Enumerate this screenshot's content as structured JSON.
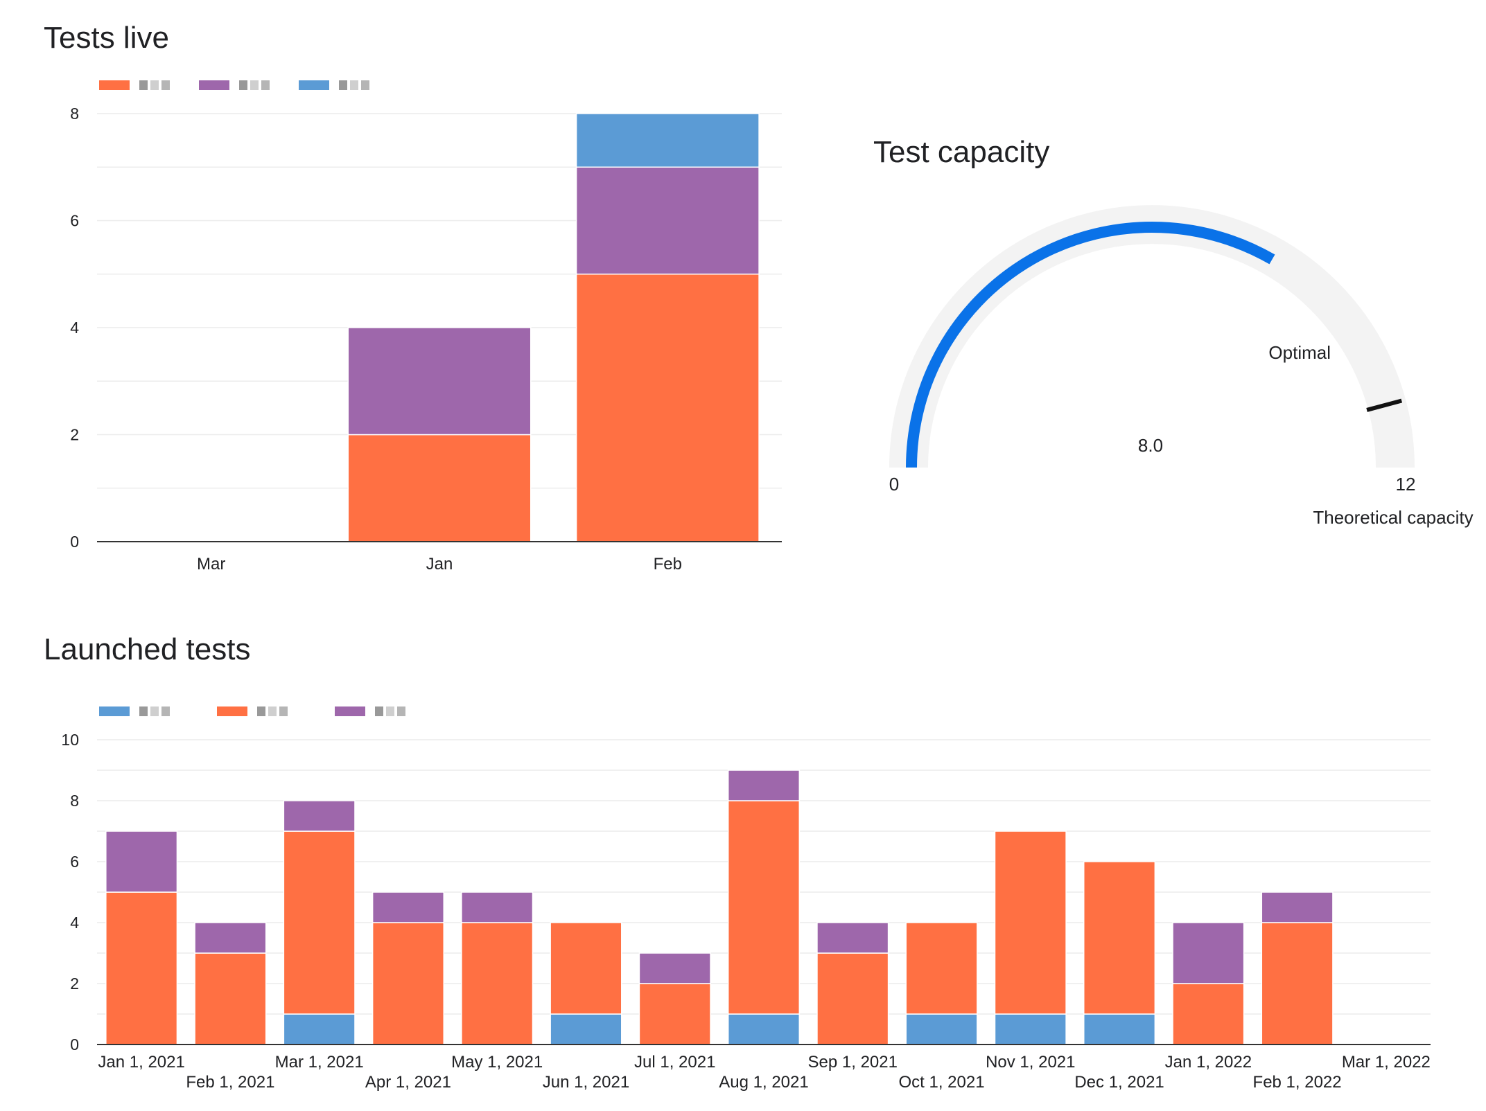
{
  "tests_live": {
    "title": "Tests live"
  },
  "launched_tests": {
    "title": "Launched tests"
  },
  "test_capacity": {
    "title": "Test capacity",
    "value_label": "8.0",
    "min_label": "0",
    "max_label": "12",
    "target_label": "Optimal",
    "max_caption": "Theoretical capacity"
  },
  "colors": {
    "orange": "#ff7043",
    "purple": "#9e67ab",
    "blue": "#5b9bd5",
    "gauge_fill": "#0a72e8",
    "gauge_track": "#f3f3f3",
    "optimal": "#7cb342"
  },
  "chart_data": [
    {
      "type": "bar",
      "stacked": true,
      "title": "Tests live",
      "categories": [
        "Mar",
        "Jan",
        "Feb"
      ],
      "series": [
        {
          "color": "#ff7043",
          "values": [
            0,
            2,
            5
          ]
        },
        {
          "color": "#9e67ab",
          "values": [
            0,
            2,
            2
          ]
        },
        {
          "color": "#5b9bd5",
          "values": [
            0,
            0,
            1
          ]
        }
      ],
      "ylim": [
        0,
        8
      ],
      "yticks": [
        0,
        2,
        4,
        6,
        8
      ],
      "grid": true,
      "legend": "top-left"
    },
    {
      "type": "gauge",
      "title": "Test capacity",
      "value": 8.0,
      "min": 0,
      "max": 12,
      "target": 11
    },
    {
      "type": "bar",
      "stacked": true,
      "title": "Launched tests",
      "categories": [
        "Jan 1, 2021",
        "Feb 1, 2021",
        "Mar 1, 2021",
        "Apr 1, 2021",
        "May 1, 2021",
        "Jun 1, 2021",
        "Jul 1, 2021",
        "Aug 1, 2021",
        "Sep 1, 2021",
        "Oct 1, 2021",
        "Nov 1, 2021",
        "Dec 1, 2021",
        "Jan 1, 2022",
        "Feb 1, 2022",
        "Mar 1, 2022"
      ],
      "series": [
        {
          "color": "#5b9bd5",
          "values": [
            0,
            0,
            1,
            0,
            0,
            1,
            0,
            1,
            0,
            1,
            1,
            1,
            0,
            0,
            0
          ]
        },
        {
          "color": "#ff7043",
          "values": [
            5,
            3,
            6,
            4,
            4,
            3,
            2,
            7,
            3,
            3,
            6,
            5,
            2,
            4,
            0
          ]
        },
        {
          "color": "#9e67ab",
          "values": [
            2,
            1,
            1,
            1,
            1,
            0,
            1,
            1,
            1,
            0,
            0,
            0,
            2,
            1,
            0
          ]
        }
      ],
      "ylim": [
        0,
        10
      ],
      "yticks": [
        0,
        2,
        4,
        6,
        8,
        10
      ],
      "grid": true,
      "legend": "top-left"
    }
  ]
}
